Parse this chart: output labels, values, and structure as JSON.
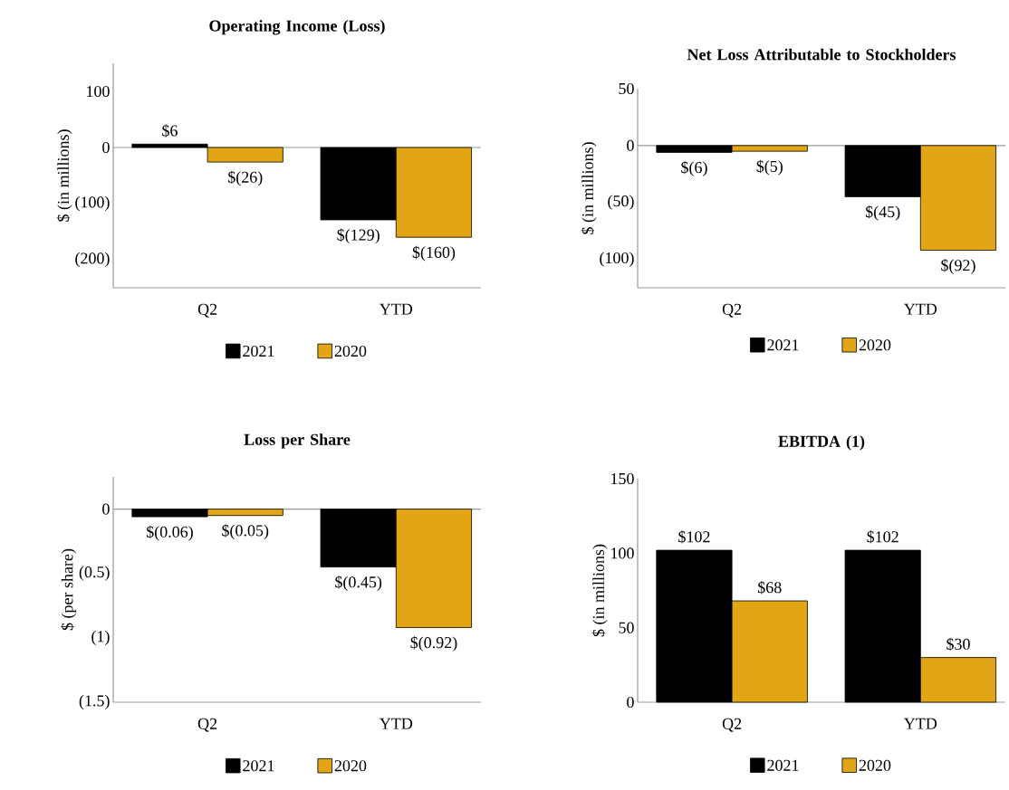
{
  "chart_data": [
    {
      "type": "bar",
      "title": "Operating Income (Loss)",
      "ylabel": "$ (in millions)",
      "categories": [
        "Q2",
        "YTD"
      ],
      "series": [
        {
          "name": "2021",
          "color": "#000000",
          "values": [
            6,
            -129
          ],
          "value_labels": [
            "$6",
            "$(129)"
          ]
        },
        {
          "name": "2020",
          "color": "#e2a516",
          "values": [
            -26,
            -160
          ],
          "value_labels": [
            "$(26)",
            "$(160)"
          ]
        }
      ],
      "ylim": [
        -250,
        150
      ],
      "yticks": [
        100,
        0,
        {
          "value": -100,
          "label": "(100)"
        },
        {
          "value": -200,
          "label": "(200)"
        }
      ],
      "legend": "bottom"
    },
    {
      "type": "bar",
      "title": "Net Loss Attributable to Stockholders",
      "ylabel": "$ (in millions)",
      "categories": [
        "Q2",
        "YTD"
      ],
      "series": [
        {
          "name": "2021",
          "color": "#000000",
          "values": [
            -6,
            -45
          ],
          "value_labels": [
            "$(6)",
            "$(45)"
          ]
        },
        {
          "name": "2020",
          "color": "#e2a516",
          "values": [
            -5,
            -92
          ],
          "value_labels": [
            "$(5)",
            "$(92)"
          ]
        }
      ],
      "ylim": [
        -125,
        50
      ],
      "yticks": [
        50,
        0,
        {
          "value": -50,
          "label": "(50)"
        },
        {
          "value": -100,
          "label": "(100)"
        }
      ],
      "legend": "bottom"
    },
    {
      "type": "bar",
      "title": "Loss per Share",
      "ylabel": "$ (per share)",
      "categories": [
        "Q2",
        "YTD"
      ],
      "series": [
        {
          "name": "2021",
          "color": "#000000",
          "values": [
            -0.06,
            -0.45
          ],
          "value_labels": [
            "$(0.06)",
            "$(0.45)"
          ]
        },
        {
          "name": "2020",
          "color": "#e2a516",
          "values": [
            -0.05,
            -0.92
          ],
          "value_labels": [
            "$(0.05)",
            "$(0.92)"
          ]
        }
      ],
      "ylim": [
        -1.5,
        0.25
      ],
      "yticks": [
        0,
        {
          "value": -0.5,
          "label": "(0.5)"
        },
        {
          "value": -1,
          "label": "(1)"
        },
        {
          "value": -1.5,
          "label": "(1.5)"
        }
      ],
      "legend": "bottom"
    },
    {
      "type": "bar",
      "title": "EBITDA (1)",
      "ylabel": "$ (in millions)",
      "categories": [
        "Q2",
        "YTD"
      ],
      "series": [
        {
          "name": "2021",
          "color": "#000000",
          "values": [
            102,
            102
          ],
          "value_labels": [
            "$102",
            "$102"
          ]
        },
        {
          "name": "2020",
          "color": "#e2a516",
          "values": [
            68,
            30
          ],
          "value_labels": [
            "$68",
            "$30"
          ]
        }
      ],
      "ylim": [
        0,
        150
      ],
      "yticks": [
        150,
        100,
        50,
        0
      ],
      "legend": "bottom"
    }
  ]
}
